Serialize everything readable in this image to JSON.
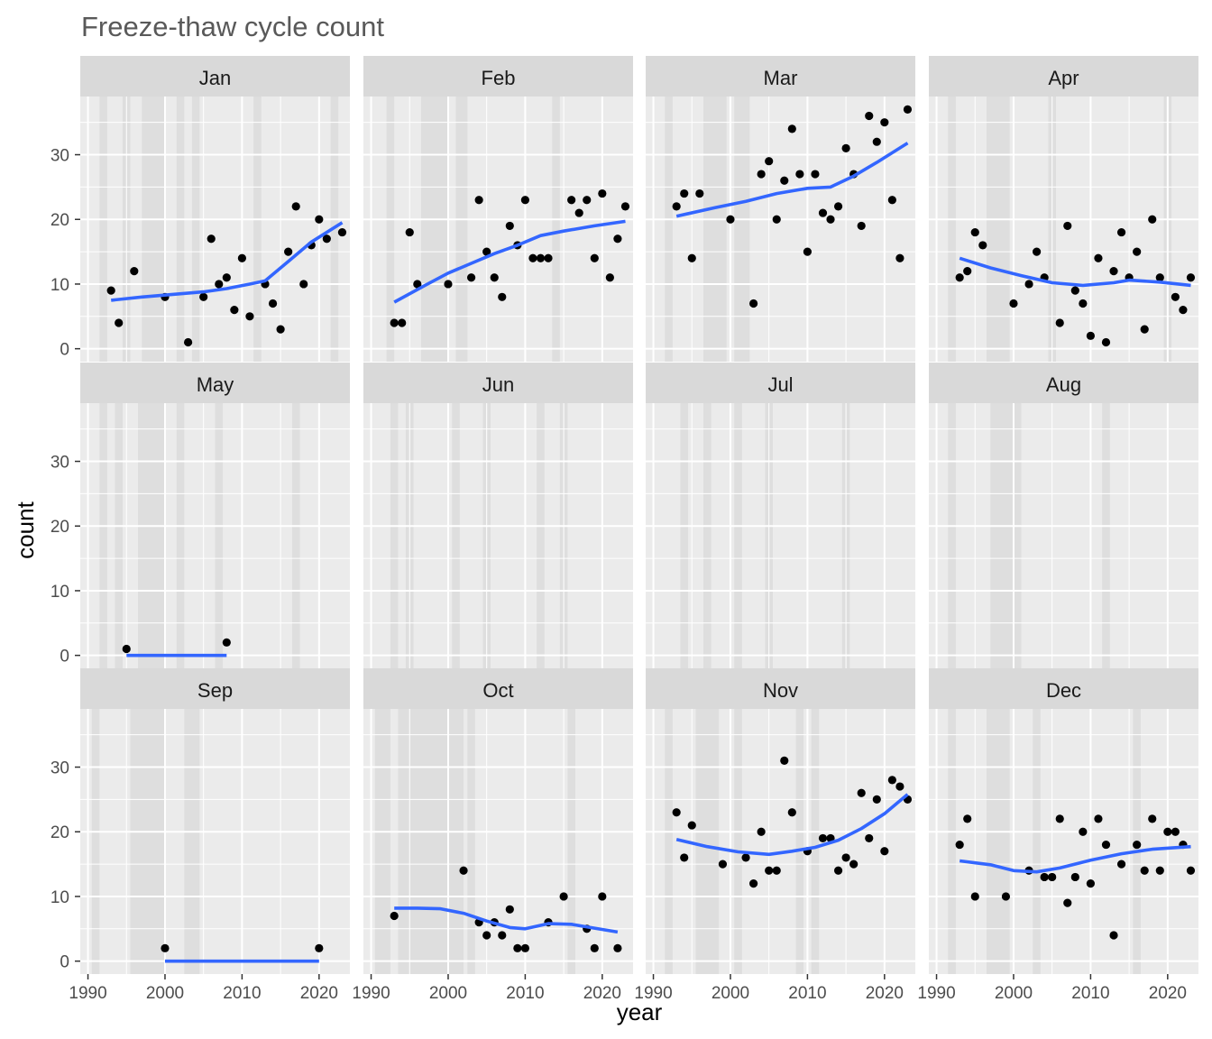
{
  "chart_data": {
    "type": "scatter",
    "title": "Freeze-thaw cycle count",
    "xlabel": "year",
    "ylabel": "count",
    "xlim": [
      1989,
      2024
    ],
    "ylim": [
      -2,
      39
    ],
    "x_ticks": [
      1990,
      2000,
      2010,
      2020
    ],
    "y_ticks": [
      0,
      10,
      20,
      30
    ],
    "grid": true,
    "facet_layout": {
      "nrow": 3,
      "ncol": 4
    },
    "colors": {
      "panel_bg": "#ebebeb",
      "strip_bg": "#d9d9d9",
      "grid": "#ffffff",
      "shade": "#dedede",
      "point": "#000000",
      "smooth": "#3366ff"
    },
    "panels": [
      {
        "month": "Jan",
        "points": [
          [
            1993,
            9
          ],
          [
            1994,
            4
          ],
          [
            1996,
            12
          ],
          [
            2000,
            8
          ],
          [
            2003,
            1
          ],
          [
            2005,
            8
          ],
          [
            2006,
            17
          ],
          [
            2007,
            10
          ],
          [
            2008,
            11
          ],
          [
            2009,
            6
          ],
          [
            2010,
            14
          ],
          [
            2011,
            5
          ],
          [
            2013,
            10
          ],
          [
            2014,
            7
          ],
          [
            2015,
            3
          ],
          [
            2016,
            15
          ],
          [
            2017,
            22
          ],
          [
            2018,
            10
          ],
          [
            2019,
            16
          ],
          [
            2020,
            20
          ],
          [
            2021,
            17
          ],
          [
            2023,
            18
          ]
        ],
        "smooth": [
          [
            1993,
            7.5
          ],
          [
            1997,
            8
          ],
          [
            2001,
            8.4
          ],
          [
            2005,
            8.8
          ],
          [
            2008,
            9.3
          ],
          [
            2011,
            10
          ],
          [
            2013,
            10.5
          ],
          [
            2016,
            13.5
          ],
          [
            2019,
            16.5
          ],
          [
            2023,
            19.5
          ]
        ],
        "shaded_years": [
          [
            1991.5,
            1992.5
          ],
          [
            1994.5,
            1995.5
          ],
          [
            1997,
            2000
          ],
          [
            2001.5,
            2002.5
          ],
          [
            2003.5,
            2004.5
          ],
          [
            2011.5,
            2012.5
          ],
          [
            2021.5,
            2022.5
          ]
        ]
      },
      {
        "month": "Feb",
        "points": [
          [
            1993,
            4
          ],
          [
            1994,
            4
          ],
          [
            1995,
            18
          ],
          [
            1996,
            10
          ],
          [
            2000,
            10
          ],
          [
            2003,
            11
          ],
          [
            2004,
            23
          ],
          [
            2005,
            15
          ],
          [
            2006,
            11
          ],
          [
            2007,
            8
          ],
          [
            2008,
            19
          ],
          [
            2009,
            16
          ],
          [
            2010,
            23
          ],
          [
            2011,
            14
          ],
          [
            2012,
            14
          ],
          [
            2013,
            14
          ],
          [
            2016,
            23
          ],
          [
            2017,
            21
          ],
          [
            2018,
            23
          ],
          [
            2019,
            14
          ],
          [
            2020,
            24
          ],
          [
            2021,
            11
          ],
          [
            2022,
            17
          ],
          [
            2023,
            22
          ]
        ],
        "smooth": [
          [
            1993,
            7.2
          ],
          [
            1997,
            9.8
          ],
          [
            2000,
            11.7
          ],
          [
            2003,
            13.2
          ],
          [
            2006,
            14.7
          ],
          [
            2009,
            16
          ],
          [
            2012,
            17.5
          ],
          [
            2015,
            18.2
          ],
          [
            2019,
            19
          ],
          [
            2023,
            19.7
          ]
        ],
        "shaded_years": [
          [
            1992,
            1993
          ],
          [
            1996.5,
            2000
          ],
          [
            2001,
            2002.5
          ],
          [
            2013.5,
            2014.5
          ]
        ]
      },
      {
        "month": "Mar",
        "points": [
          [
            1993,
            22
          ],
          [
            1994,
            24
          ],
          [
            1995,
            14
          ],
          [
            1996,
            24
          ],
          [
            2000,
            20
          ],
          [
            2003,
            7
          ],
          [
            2004,
            27
          ],
          [
            2005,
            29
          ],
          [
            2006,
            20
          ],
          [
            2007,
            26
          ],
          [
            2008,
            34
          ],
          [
            2009,
            27
          ],
          [
            2010,
            15
          ],
          [
            2011,
            27
          ],
          [
            2012,
            21
          ],
          [
            2013,
            20
          ],
          [
            2014,
            22
          ],
          [
            2015,
            31
          ],
          [
            2016,
            27
          ],
          [
            2017,
            19
          ],
          [
            2018,
            36
          ],
          [
            2019,
            32
          ],
          [
            2020,
            35
          ],
          [
            2021,
            23
          ],
          [
            2022,
            14
          ],
          [
            2023,
            37
          ]
        ],
        "smooth": [
          [
            1993,
            20.5
          ],
          [
            1998,
            21.8
          ],
          [
            2002,
            22.8
          ],
          [
            2006,
            24
          ],
          [
            2010,
            24.8
          ],
          [
            2013,
            25
          ],
          [
            2016,
            26.7
          ],
          [
            2019,
            28.8
          ],
          [
            2023,
            31.8
          ]
        ],
        "shaded_years": [
          [
            1991.5,
            1992.5
          ],
          [
            1996.5,
            1999.5
          ],
          [
            2000.5,
            2002.5
          ]
        ]
      },
      {
        "month": "Apr",
        "points": [
          [
            1993,
            11
          ],
          [
            1994,
            12
          ],
          [
            1995,
            18
          ],
          [
            1996,
            16
          ],
          [
            2000,
            7
          ],
          [
            2002,
            10
          ],
          [
            2003,
            15
          ],
          [
            2004,
            11
          ],
          [
            2006,
            4
          ],
          [
            2007,
            19
          ],
          [
            2008,
            9
          ],
          [
            2009,
            7
          ],
          [
            2010,
            2
          ],
          [
            2011,
            14
          ],
          [
            2012,
            1
          ],
          [
            2013,
            12
          ],
          [
            2014,
            18
          ],
          [
            2015,
            11
          ],
          [
            2016,
            15
          ],
          [
            2017,
            3
          ],
          [
            2018,
            20
          ],
          [
            2019,
            11
          ],
          [
            2021,
            8
          ],
          [
            2022,
            6
          ],
          [
            2023,
            11
          ]
        ],
        "smooth": [
          [
            1993,
            14
          ],
          [
            1997,
            12.5
          ],
          [
            2001,
            11.3
          ],
          [
            2005,
            10.2
          ],
          [
            2009,
            9.8
          ],
          [
            2013,
            10.2
          ],
          [
            2015,
            10.6
          ],
          [
            2019,
            10.3
          ],
          [
            2023,
            9.8
          ]
        ],
        "shaded_years": [
          [
            1991.5,
            1992.5
          ],
          [
            1996.5,
            1999.5
          ],
          [
            2004.5,
            2005.5
          ],
          [
            2019.5,
            2020.5
          ]
        ]
      },
      {
        "month": "May",
        "points": [
          [
            1995,
            1
          ],
          [
            2008,
            2
          ]
        ],
        "smooth": [
          [
            1995,
            0
          ],
          [
            2008,
            0
          ]
        ],
        "shaded_years": [
          [
            1991.5,
            1992.5
          ],
          [
            1993.5,
            1994.5
          ],
          [
            1996.5,
            2000
          ],
          [
            2001.5,
            2002.5
          ],
          [
            2006.5,
            2007.5
          ],
          [
            2016.5,
            2017.5
          ]
        ]
      },
      {
        "month": "Jun",
        "points": [],
        "smooth": [],
        "shaded_years": [
          [
            1992.5,
            1993.5
          ],
          [
            1994.5,
            1995.5
          ],
          [
            2000.5,
            2001.5
          ],
          [
            2004.5,
            2005.5
          ],
          [
            2011.5,
            2012.5
          ],
          [
            2014.5,
            2015.5
          ]
        ]
      },
      {
        "month": "Jul",
        "points": [],
        "smooth": [],
        "shaded_years": [
          [
            1993.5,
            1994.5
          ],
          [
            1996.5,
            1997.5
          ],
          [
            2000.5,
            2001.5
          ],
          [
            2004.5,
            2005.5
          ],
          [
            2014.5,
            2015.5
          ]
        ]
      },
      {
        "month": "Aug",
        "points": [],
        "smooth": [],
        "shaded_years": [
          [
            1991.5,
            1992.5
          ],
          [
            1997,
            2001
          ],
          [
            2011.5,
            2012.5
          ]
        ]
      },
      {
        "month": "Sep",
        "points": [
          [
            2000,
            2
          ],
          [
            2020,
            2
          ]
        ],
        "smooth": [
          [
            2000,
            0
          ],
          [
            2020,
            0
          ]
        ],
        "shaded_years": [
          [
            1990.5,
            1991.5
          ],
          [
            1995.5,
            2000
          ],
          [
            2002.5,
            2004.5
          ]
        ]
      },
      {
        "month": "Oct",
        "points": [
          [
            1993,
            7
          ],
          [
            2002,
            14
          ],
          [
            2004,
            6
          ],
          [
            2005,
            4
          ],
          [
            2006,
            6
          ],
          [
            2007,
            4
          ],
          [
            2008,
            8
          ],
          [
            2009,
            2
          ],
          [
            2010,
            2
          ],
          [
            2013,
            6
          ],
          [
            2015,
            10
          ],
          [
            2018,
            5
          ],
          [
            2019,
            2
          ],
          [
            2020,
            10
          ],
          [
            2022,
            2
          ]
        ],
        "smooth": [
          [
            1993,
            8.2
          ],
          [
            1996,
            8.2
          ],
          [
            1999,
            8.1
          ],
          [
            2002,
            7.4
          ],
          [
            2005,
            6.2
          ],
          [
            2008,
            5.2
          ],
          [
            2010,
            5
          ],
          [
            2013,
            5.8
          ],
          [
            2016,
            5.7
          ],
          [
            2019,
            5.1
          ],
          [
            2022,
            4.5
          ]
        ],
        "shaded_years": [
          [
            1990.5,
            1992.5
          ],
          [
            1993.5,
            2002
          ],
          [
            2002.5,
            2003.5
          ],
          [
            2015.5,
            2016.5
          ]
        ]
      },
      {
        "month": "Nov",
        "points": [
          [
            1993,
            23
          ],
          [
            1994,
            16
          ],
          [
            1995,
            21
          ],
          [
            1999,
            15
          ],
          [
            2002,
            16
          ],
          [
            2003,
            12
          ],
          [
            2004,
            20
          ],
          [
            2005,
            14
          ],
          [
            2006,
            14
          ],
          [
            2007,
            31
          ],
          [
            2008,
            23
          ],
          [
            2010,
            17
          ],
          [
            2012,
            19
          ],
          [
            2013,
            19
          ],
          [
            2014,
            14
          ],
          [
            2015,
            16
          ],
          [
            2016,
            15
          ],
          [
            2017,
            26
          ],
          [
            2018,
            19
          ],
          [
            2019,
            25
          ],
          [
            2020,
            17
          ],
          [
            2021,
            28
          ],
          [
            2022,
            27
          ],
          [
            2023,
            25
          ]
        ],
        "smooth": [
          [
            1993,
            18.8
          ],
          [
            1997,
            17.7
          ],
          [
            2001,
            16.9
          ],
          [
            2005,
            16.5
          ],
          [
            2008,
            17
          ],
          [
            2011,
            17.6
          ],
          [
            2014,
            18.7
          ],
          [
            2017,
            20.5
          ],
          [
            2020,
            22.8
          ],
          [
            2023,
            25.8
          ]
        ],
        "shaded_years": [
          [
            1991.5,
            1992.5
          ],
          [
            1995.5,
            1998.5
          ],
          [
            2000.5,
            2001.5
          ],
          [
            2008.5,
            2009.5
          ],
          [
            2010.5,
            2011.5
          ]
        ]
      },
      {
        "month": "Dec",
        "points": [
          [
            1993,
            18
          ],
          [
            1994,
            22
          ],
          [
            1995,
            10
          ],
          [
            1999,
            10
          ],
          [
            2002,
            14
          ],
          [
            2004,
            13
          ],
          [
            2005,
            13
          ],
          [
            2006,
            22
          ],
          [
            2007,
            9
          ],
          [
            2008,
            13
          ],
          [
            2009,
            20
          ],
          [
            2010,
            12
          ],
          [
            2011,
            22
          ],
          [
            2012,
            18
          ],
          [
            2013,
            4
          ],
          [
            2014,
            15
          ],
          [
            2016,
            18
          ],
          [
            2017,
            14
          ],
          [
            2018,
            22
          ],
          [
            2019,
            14
          ],
          [
            2020,
            20
          ],
          [
            2021,
            20
          ],
          [
            2022,
            18
          ],
          [
            2023,
            14
          ]
        ],
        "smooth": [
          [
            1993,
            15.5
          ],
          [
            1997,
            14.9
          ],
          [
            2000,
            14
          ],
          [
            2003,
            13.8
          ],
          [
            2006,
            14.4
          ],
          [
            2010,
            15.6
          ],
          [
            2014,
            16.6
          ],
          [
            2018,
            17.3
          ],
          [
            2023,
            17.7
          ]
        ],
        "shaded_years": [
          [
            1991.5,
            1992.5
          ],
          [
            1996.5,
            1999.5
          ],
          [
            2002.5,
            2003.5
          ],
          [
            2015.5,
            2016.5
          ]
        ]
      }
    ]
  }
}
